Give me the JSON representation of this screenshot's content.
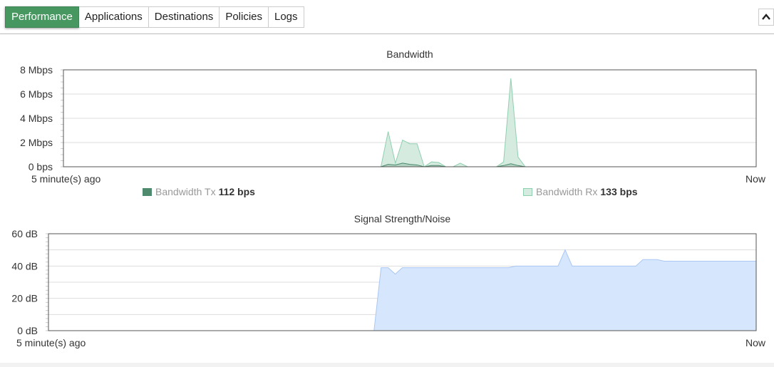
{
  "tabs": [
    {
      "label": "Performance",
      "active": true
    },
    {
      "label": "Applications"
    },
    {
      "label": "Destinations"
    },
    {
      "label": "Policies"
    },
    {
      "label": "Logs"
    }
  ],
  "collapse_icon": "chevron-up-icon",
  "colors": {
    "tab_active": "#479761",
    "rx_fill": "#d5ebe0",
    "rx_stroke": "#8fcfb0",
    "tx_fill": "#a8cbb9",
    "tx_stroke": "#4d8a6e",
    "signal_fill": "#d6e6fc",
    "signal_stroke": "#a9c8f5"
  },
  "chart_data": [
    {
      "type": "area",
      "title": "Bandwidth",
      "ylim": [
        0,
        8
      ],
      "y_ticks": [
        "0 bps",
        "2 Mbps",
        "4 Mbps",
        "6 Mbps",
        "8 Mbps"
      ],
      "y_tick_values": [
        0,
        2,
        4,
        6,
        8
      ],
      "x_start_label": "5 minute(s) ago",
      "x_end_label": "Now",
      "grid": true,
      "legend": "bottom",
      "series": [
        {
          "name": "Bandwidth Tx",
          "current": "112 bps",
          "unit": "Mbps",
          "values": [
            0,
            0,
            0,
            0,
            0,
            0,
            0,
            0,
            0,
            0,
            0,
            0,
            0,
            0,
            0,
            0,
            0,
            0,
            0,
            0,
            0,
            0,
            0,
            0,
            0,
            0,
            0,
            0,
            0,
            0,
            0,
            0,
            0,
            0,
            0,
            0,
            0,
            0,
            0,
            0,
            0,
            0,
            0,
            0,
            0,
            0.2,
            0.15,
            0.3,
            0.2,
            0.15,
            0,
            0.1,
            0.1,
            0,
            0,
            0,
            0,
            0,
            0,
            0,
            0,
            0.1,
            0.25,
            0.1,
            0,
            0,
            0,
            0,
            0,
            0,
            0,
            0,
            0,
            0,
            0,
            0,
            0,
            0,
            0,
            0,
            0,
            0,
            0,
            0,
            0,
            0,
            0,
            0,
            0,
            0,
            0,
            0,
            0,
            0,
            0,
            0,
            0
          ]
        },
        {
          "name": "Bandwidth Rx",
          "current": "133 bps",
          "unit": "Mbps",
          "values": [
            0,
            0,
            0,
            0,
            0,
            0,
            0,
            0,
            0,
            0,
            0,
            0,
            0,
            0,
            0,
            0,
            0,
            0,
            0,
            0,
            0,
            0,
            0,
            0,
            0,
            0,
            0,
            0,
            0,
            0,
            0,
            0,
            0,
            0,
            0,
            0,
            0,
            0,
            0,
            0,
            0,
            0,
            0,
            0,
            0,
            2.9,
            0.3,
            2.2,
            1.9,
            1.9,
            0,
            0.4,
            0.35,
            0,
            0,
            0.3,
            0,
            0,
            0,
            0,
            0,
            0.4,
            7.3,
            0.8,
            0,
            0,
            0,
            0,
            0,
            0,
            0,
            0,
            0,
            0,
            0,
            0,
            0,
            0,
            0,
            0,
            0,
            0,
            0,
            0,
            0,
            0,
            0,
            0,
            0,
            0,
            0,
            0,
            0,
            0,
            0,
            0,
            0
          ]
        }
      ]
    },
    {
      "type": "area",
      "title": "Signal Strength/Noise",
      "ylim": [
        0,
        60
      ],
      "y_ticks": [
        "0 dB",
        "20 dB",
        "40 dB",
        "60 dB"
      ],
      "y_tick_values": [
        0,
        20,
        40,
        60
      ],
      "x_start_label": "5 minute(s) ago",
      "x_end_label": "Now",
      "grid": true,
      "series": [
        {
          "unit": "dB",
          "values": [
            0,
            0,
            0,
            0,
            0,
            0,
            0,
            0,
            0,
            0,
            0,
            0,
            0,
            0,
            0,
            0,
            0,
            0,
            0,
            0,
            0,
            0,
            0,
            0,
            0,
            0,
            0,
            0,
            0,
            0,
            0,
            0,
            0,
            0,
            0,
            0,
            0,
            0,
            0,
            0,
            0,
            0,
            0,
            0,
            0,
            0,
            0,
            39,
            39,
            35,
            39,
            39,
            39,
            39,
            39,
            39,
            39,
            39,
            39,
            39,
            39,
            39,
            39,
            39,
            39,
            39,
            40,
            40,
            40,
            40,
            40,
            40,
            40,
            50,
            40,
            40,
            40,
            40,
            40,
            40,
            40,
            40,
            40,
            40,
            44,
            44,
            44,
            43,
            43,
            43,
            43,
            43,
            43,
            43,
            43,
            43,
            43,
            43,
            43,
            43,
            43
          ]
        }
      ]
    }
  ]
}
